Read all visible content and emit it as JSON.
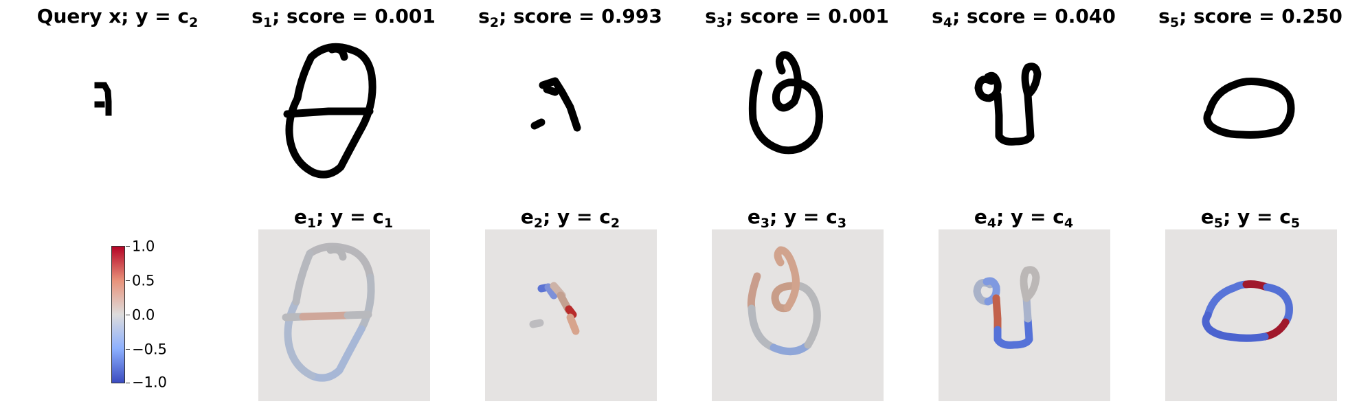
{
  "top_row": [
    {
      "name": "query",
      "title_main": "Query x; y",
      "eq": " = ",
      "title_var": "c",
      "title_sub": "2"
    },
    {
      "name": "s1",
      "title_var": "s",
      "title_sub": "1",
      "title_rest": "; score = 0.001"
    },
    {
      "name": "s2",
      "title_var": "s",
      "title_sub": "2",
      "title_rest": "; score = 0.993"
    },
    {
      "name": "s3",
      "title_var": "s",
      "title_sub": "3",
      "title_rest": "; score = 0.001"
    },
    {
      "name": "s4",
      "title_var": "s",
      "title_sub": "4",
      "title_rest": "; score = 0.040"
    },
    {
      "name": "s5",
      "title_var": "s",
      "title_sub": "5",
      "title_rest": "; score = 0.250"
    }
  ],
  "bottom_row": [
    {
      "name": "e1",
      "title_var": "e",
      "title_sub": "1",
      "title_rest": "; y",
      "eq": " = ",
      "class_var": "c",
      "class_sub": "1"
    },
    {
      "name": "e2",
      "title_var": "e",
      "title_sub": "2",
      "title_rest": "; y",
      "eq": " = ",
      "class_var": "c",
      "class_sub": "2"
    },
    {
      "name": "e3",
      "title_var": "e",
      "title_sub": "3",
      "title_rest": "; y",
      "eq": " = ",
      "class_var": "c",
      "class_sub": "3"
    },
    {
      "name": "e4",
      "title_var": "e",
      "title_sub": "4",
      "title_rest": "; y",
      "eq": " = ",
      "class_var": "c",
      "class_sub": "4"
    },
    {
      "name": "e5",
      "title_var": "e",
      "title_sub": "5",
      "title_rest": "; y",
      "eq": " = ",
      "class_var": "c",
      "class_sub": "5"
    }
  ],
  "colorbar": {
    "ticks": [
      "1.0",
      "0.5",
      "0.0",
      "−0.5",
      "−1.0"
    ],
    "colors": {
      "high": "#b40426",
      "mid": "#dddcdc",
      "low": "#3b4cc0"
    }
  }
}
